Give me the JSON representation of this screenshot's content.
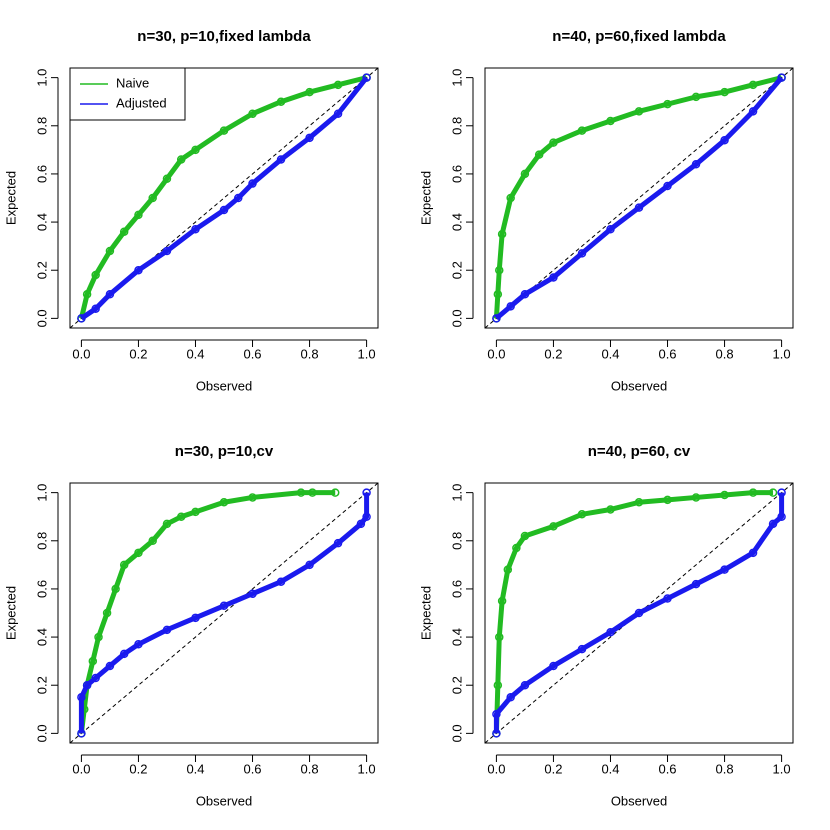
{
  "chart_data": [
    {
      "type": "scatter",
      "title": "n=30, p=10,fixed lambda",
      "xlabel": "Observed",
      "ylabel": "Expected",
      "xlim": [
        -0.04,
        1.04
      ],
      "ylim": [
        -0.04,
        1.04
      ],
      "xticks": [
        {
          "value": 0,
          "label": "0.0"
        },
        0.2,
        0.4,
        0.6,
        0.8,
        {
          "value": 1,
          "label": "1.0"
        }
      ],
      "yticks": [
        {
          "value": 0,
          "label": "0.0"
        },
        0.2,
        0.4,
        0.6,
        0.8,
        {
          "value": 1,
          "label": "1.0"
        }
      ],
      "legend": "topleft",
      "series": [
        {
          "name": "Naive",
          "color": "#22bb22",
          "x": [
            0,
            0.02,
            0.05,
            0.1,
            0.15,
            0.2,
            0.25,
            0.3,
            0.35,
            0.4,
            0.5,
            0.6,
            0.7,
            0.8,
            0.9,
            1
          ],
          "values": [
            0,
            0.1,
            0.18,
            0.28,
            0.36,
            0.43,
            0.5,
            0.58,
            0.66,
            0.7,
            0.78,
            0.85,
            0.9,
            0.94,
            0.97,
            1
          ]
        },
        {
          "name": "Adjusted",
          "color": "#1a1aee",
          "x": [
            0,
            0.05,
            0.1,
            0.2,
            0.3,
            0.4,
            0.5,
            0.55,
            0.6,
            0.7,
            0.8,
            0.9,
            1
          ],
          "values": [
            0,
            0.04,
            0.1,
            0.2,
            0.28,
            0.37,
            0.45,
            0.5,
            0.56,
            0.66,
            0.75,
            0.85,
            1
          ]
        }
      ]
    },
    {
      "type": "scatter",
      "title": "n=40, p=60,fixed lambda",
      "xlabel": "Observed",
      "ylabel": "Expected",
      "xlim": [
        -0.04,
        1.04
      ],
      "ylim": [
        -0.04,
        1.04
      ],
      "xticks": [
        {
          "value": 0,
          "label": "0.0"
        },
        0.2,
        0.4,
        0.6,
        0.8,
        {
          "value": 1,
          "label": "1.0"
        }
      ],
      "yticks": [
        {
          "value": 0,
          "label": "0.0"
        },
        0.2,
        0.4,
        0.6,
        0.8,
        {
          "value": 1,
          "label": "1.0"
        }
      ],
      "series": [
        {
          "color": "#22bb22",
          "x": [
            0,
            0.005,
            0.01,
            0.02,
            0.05,
            0.1,
            0.15,
            0.2,
            0.3,
            0.4,
            0.5,
            0.6,
            0.7,
            0.8,
            0.9,
            1
          ],
          "values": [
            0,
            0.1,
            0.2,
            0.35,
            0.5,
            0.6,
            0.68,
            0.73,
            0.78,
            0.82,
            0.86,
            0.89,
            0.92,
            0.94,
            0.97,
            1
          ]
        },
        {
          "color": "#1a1aee",
          "x": [
            0,
            0.05,
            0.1,
            0.2,
            0.3,
            0.4,
            0.5,
            0.6,
            0.7,
            0.8,
            0.9,
            1
          ],
          "values": [
            0,
            0.05,
            0.1,
            0.17,
            0.27,
            0.37,
            0.46,
            0.55,
            0.64,
            0.74,
            0.86,
            1
          ]
        }
      ]
    },
    {
      "type": "scatter",
      "title": "n=30, p=10,cv",
      "xlabel": "Observed",
      "ylabel": "Expected",
      "xlim": [
        -0.04,
        1.04
      ],
      "ylim": [
        -0.04,
        1.04
      ],
      "xticks": [
        {
          "value": 0,
          "label": "0.0"
        },
        0.2,
        0.4,
        0.6,
        0.8,
        {
          "value": 1,
          "label": "1.0"
        }
      ],
      "yticks": [
        {
          "value": 0,
          "label": "0.0"
        },
        0.2,
        0.4,
        0.6,
        0.8,
        {
          "value": 1,
          "label": "1.0"
        }
      ],
      "series": [
        {
          "color": "#22bb22",
          "x": [
            0,
            0.01,
            0.02,
            0.04,
            0.06,
            0.09,
            0.12,
            0.15,
            0.2,
            0.25,
            0.3,
            0.35,
            0.4,
            0.5,
            0.6,
            0.77,
            0.81,
            0.89
          ],
          "values": [
            0,
            0.1,
            0.2,
            0.3,
            0.4,
            0.5,
            0.6,
            0.7,
            0.75,
            0.8,
            0.87,
            0.9,
            0.92,
            0.96,
            0.98,
            1,
            1,
            1
          ]
        },
        {
          "color": "#1a1aee",
          "x": [
            0,
            0,
            0.02,
            0.05,
            0.1,
            0.15,
            0.2,
            0.3,
            0.4,
            0.5,
            0.6,
            0.7,
            0.8,
            0.9,
            0.98,
            1,
            1
          ],
          "values": [
            0,
            0.15,
            0.2,
            0.23,
            0.28,
            0.33,
            0.37,
            0.43,
            0.48,
            0.53,
            0.58,
            0.63,
            0.7,
            0.79,
            0.87,
            0.9,
            1
          ]
        }
      ]
    },
    {
      "type": "scatter",
      "title": "n=40, p=60, cv",
      "xlabel": "Observed",
      "ylabel": "Expected",
      "xlim": [
        -0.04,
        1.04
      ],
      "ylim": [
        -0.04,
        1.04
      ],
      "xticks": [
        {
          "value": 0,
          "label": "0.0"
        },
        0.2,
        0.4,
        0.6,
        0.8,
        {
          "value": 1,
          "label": "1.0"
        }
      ],
      "yticks": [
        {
          "value": 0,
          "label": "0.0"
        },
        0.2,
        0.4,
        0.6,
        0.8,
        {
          "value": 1,
          "label": "1.0"
        }
      ],
      "series": [
        {
          "color": "#22bb22",
          "x": [
            0,
            0.005,
            0.01,
            0.02,
            0.04,
            0.07,
            0.1,
            0.2,
            0.3,
            0.4,
            0.5,
            0.6,
            0.7,
            0.8,
            0.9,
            0.97
          ],
          "values": [
            0,
            0.2,
            0.4,
            0.55,
            0.68,
            0.77,
            0.82,
            0.86,
            0.91,
            0.93,
            0.96,
            0.97,
            0.98,
            0.99,
            1,
            1
          ]
        },
        {
          "color": "#1a1aee",
          "x": [
            0,
            0,
            0.05,
            0.1,
            0.2,
            0.3,
            0.4,
            0.5,
            0.6,
            0.7,
            0.8,
            0.9,
            0.97,
            1,
            1
          ],
          "values": [
            0,
            0.08,
            0.15,
            0.2,
            0.28,
            0.35,
            0.42,
            0.5,
            0.56,
            0.62,
            0.68,
            0.75,
            0.87,
            0.9,
            1
          ]
        }
      ]
    }
  ]
}
